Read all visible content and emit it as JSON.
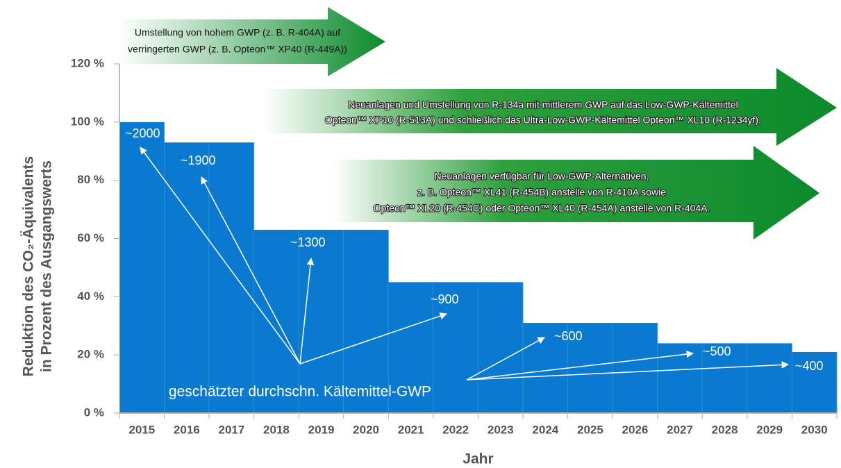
{
  "chart_data": {
    "type": "bar",
    "categories": [
      "2015",
      "2016",
      "2017",
      "2018",
      "2019",
      "2020",
      "2021",
      "2022",
      "2023",
      "2024",
      "2025",
      "2026",
      "2027",
      "2028",
      "2029",
      "2030"
    ],
    "values": [
      100,
      93,
      93,
      63,
      63,
      63,
      45,
      45,
      45,
      31,
      31,
      31,
      24,
      24,
      24,
      21
    ],
    "color": "#0a7ad0",
    "ylim": [
      0,
      120
    ],
    "yticks": [
      {
        "value": 0,
        "label": "0 %"
      },
      {
        "value": 20,
        "label": "20 %"
      },
      {
        "value": 40,
        "label": "40 %"
      },
      {
        "value": 60,
        "label": "60 %"
      },
      {
        "value": 80,
        "label": "80 %"
      },
      {
        "value": 100,
        "label": "100 %"
      },
      {
        "value": 120,
        "label": "120 %"
      }
    ],
    "y_label": [
      "Reduktion des CO₂-Äquivalents",
      "in Prozent des Ausgangswerts"
    ],
    "x_label": "Jahr",
    "gwp_labels": [
      "~2000",
      "~1900",
      "~1300",
      "~900",
      "~600",
      "~500",
      "~400"
    ],
    "gwp_caption": "geschätzter durchschn. Kältemittel-GWP",
    "arrows": [
      {
        "lines": [
          "Umstellung von hohem GWP (z. B. R-404A) auf",
          "verringerten GWP (z. B. Opteon™ XP40 (R-449A))"
        ]
      },
      {
        "lines": [
          "Neuanlagen und Umstellung von R-134a mit mittlerem GWP auf das Low-GWP-Kältemittel",
          "Opteon™ XP10 (R-513A) und schließlich das Ultra-Low-GWP-Kältemittel Opteon™ XL10 (R-1234yf)."
        ]
      },
      {
        "lines": [
          "Neuanlagen verfügbar für Low-GWP-Alternativen,",
          "z. B. Opteon™ XL41 (R-454B) anstelle von R-410A sowie",
          "Opteon™ XL20 (R-454C) oder Opteon™ XL40 (R-454A) anstelle von R-404A."
        ]
      }
    ]
  }
}
